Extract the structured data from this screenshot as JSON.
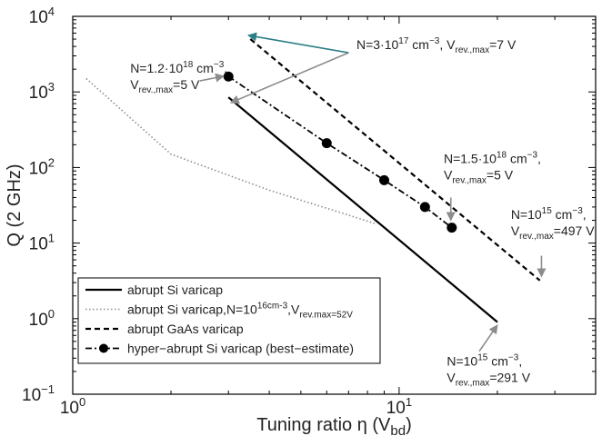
{
  "chart_data": {
    "type": "line",
    "x_scale": "log",
    "y_scale": "log",
    "xlim": [
      1,
      40
    ],
    "ylim": [
      0.1,
      10000
    ],
    "xlabel": "Tuning ratio η (V_bd)",
    "ylabel": "Q (2 GHz)",
    "grid": false,
    "legend_position": "bottom-left",
    "x_ticks": [
      {
        "value": 1,
        "base": "10",
        "exp": "0"
      },
      {
        "value": 10,
        "base": "10",
        "exp": "1"
      }
    ],
    "y_ticks": [
      {
        "value": 0.1,
        "base": "10",
        "exp": "−1"
      },
      {
        "value": 1,
        "base": "10",
        "exp": "0"
      },
      {
        "value": 10,
        "base": "10",
        "exp": "1"
      },
      {
        "value": 100,
        "base": "10",
        "exp": "2"
      },
      {
        "value": 1000,
        "base": "10",
        "exp": "3"
      },
      {
        "value": 10000,
        "base": "10",
        "exp": "4"
      }
    ],
    "series": [
      {
        "name": "abrupt Si varicap",
        "style": "solid",
        "color": "#000000",
        "x": [
          3.0,
          20.0
        ],
        "y": [
          850,
          0.9
        ]
      },
      {
        "name": "abrupt Si varicap,N=10^16cm^-3,V_rev.max=52V",
        "style": "dotted",
        "color": "#8c8c8c",
        "x": [
          1.1,
          2.0,
          4.0,
          8.5
        ],
        "y": [
          1500,
          150,
          50,
          18
        ]
      },
      {
        "name": "abrupt GaAs varicap",
        "style": "dashed",
        "color": "#000000",
        "x": [
          3.5,
          27.0
        ],
        "y": [
          5000,
          3.2
        ]
      },
      {
        "name": "hyper−abrupt Si varicap (best−estimate)",
        "style": "dashdot",
        "color": "#000000",
        "markers": true,
        "x": [
          3.0,
          6.0,
          9.0,
          12.0,
          14.5
        ],
        "y": [
          1600,
          210,
          68,
          30,
          16
        ]
      }
    ],
    "legend_entries": [
      "abrupt Si varicap",
      "abrupt Si varicap,N=10^16cm^-3,V_rev.max=52V",
      "abrupt GaAs varicap",
      "hyper−abrupt Si varicap (best−estimate)"
    ],
    "annotations": [
      {
        "lines": [
          [
            {
              "t": "N=1.2·10"
            },
            {
              "t": "18",
              "sup": true
            },
            {
              "t": " cm"
            },
            {
              "t": "−3",
              "sup": true
            },
            {
              "t": ","
            }
          ],
          [
            {
              "t": "V"
            },
            {
              "t": "rev.,max",
              "sub": true
            },
            {
              "t": "=5 V"
            }
          ]
        ],
        "text_at": [
          1.5,
          1800
        ],
        "arrow_color": "#8c8c8c",
        "arrows": [
          {
            "from": [
              2.45,
              1400
            ],
            "to": [
              2.9,
              1620
            ]
          }
        ]
      },
      {
        "lines": [
          [
            {
              "t": "N=3·10"
            },
            {
              "t": "17",
              "sup": true
            },
            {
              "t": " cm"
            },
            {
              "t": "−3",
              "sup": true
            },
            {
              "t": ", V"
            },
            {
              "t": "rev.,max",
              "sub": true
            },
            {
              "t": "=7 V"
            }
          ]
        ],
        "text_at": [
          7.4,
          3700
        ],
        "arrow_color": "#8c8c8c",
        "arrows": [
          {
            "from": [
              7.0,
              3300
            ],
            "to": [
              3.05,
              720
            ],
            "color": "#8c8c8c"
          },
          {
            "from": [
              7.0,
              3300
            ],
            "to": [
              3.45,
              5600
            ],
            "color": "#2b7f86"
          }
        ]
      },
      {
        "lines": [
          [
            {
              "t": "N=1.5·10"
            },
            {
              "t": "18",
              "sup": true
            },
            {
              "t": " cm"
            },
            {
              "t": "−3",
              "sup": true
            },
            {
              "t": ","
            }
          ],
          [
            {
              "t": "V"
            },
            {
              "t": "rev.,max",
              "sub": true
            },
            {
              "t": "=5 V"
            }
          ]
        ],
        "text_at": [
          13.7,
          115
        ],
        "arrow_color": "#8c8c8c",
        "arrows": [
          {
            "from": [
              14.4,
              40
            ],
            "to": [
              14.4,
              20
            ]
          }
        ]
      },
      {
        "lines": [
          [
            {
              "t": "N=10"
            },
            {
              "t": "15",
              "sup": true
            },
            {
              "t": " cm"
            },
            {
              "t": "−3",
              "sup": true
            },
            {
              "t": ","
            }
          ],
          [
            {
              "t": "V"
            },
            {
              "t": "rev.,max",
              "sub": true
            },
            {
              "t": "=497 V"
            }
          ]
        ],
        "text_at": [
          22.0,
          21
        ],
        "arrow_color": "#8c8c8c",
        "arrows": [
          {
            "from": [
              27.3,
              6.8
            ],
            "to": [
              27.3,
              3.6
            ]
          }
        ]
      },
      {
        "lines": [
          [
            {
              "t": "N=10"
            },
            {
              "t": "15",
              "sup": true
            },
            {
              "t": " cm"
            },
            {
              "t": "−3",
              "sup": true
            },
            {
              "t": ","
            }
          ],
          [
            {
              "t": "V"
            },
            {
              "t": "rev.,max",
              "sub": true
            },
            {
              "t": "=291 V"
            }
          ]
        ],
        "text_at": [
          14.0,
          0.24
        ],
        "arrow_color": "#8c8c8c",
        "arrows": [
          {
            "from": [
              17.6,
              0.37
            ],
            "to": [
              20.0,
              0.82
            ]
          }
        ]
      }
    ]
  }
}
